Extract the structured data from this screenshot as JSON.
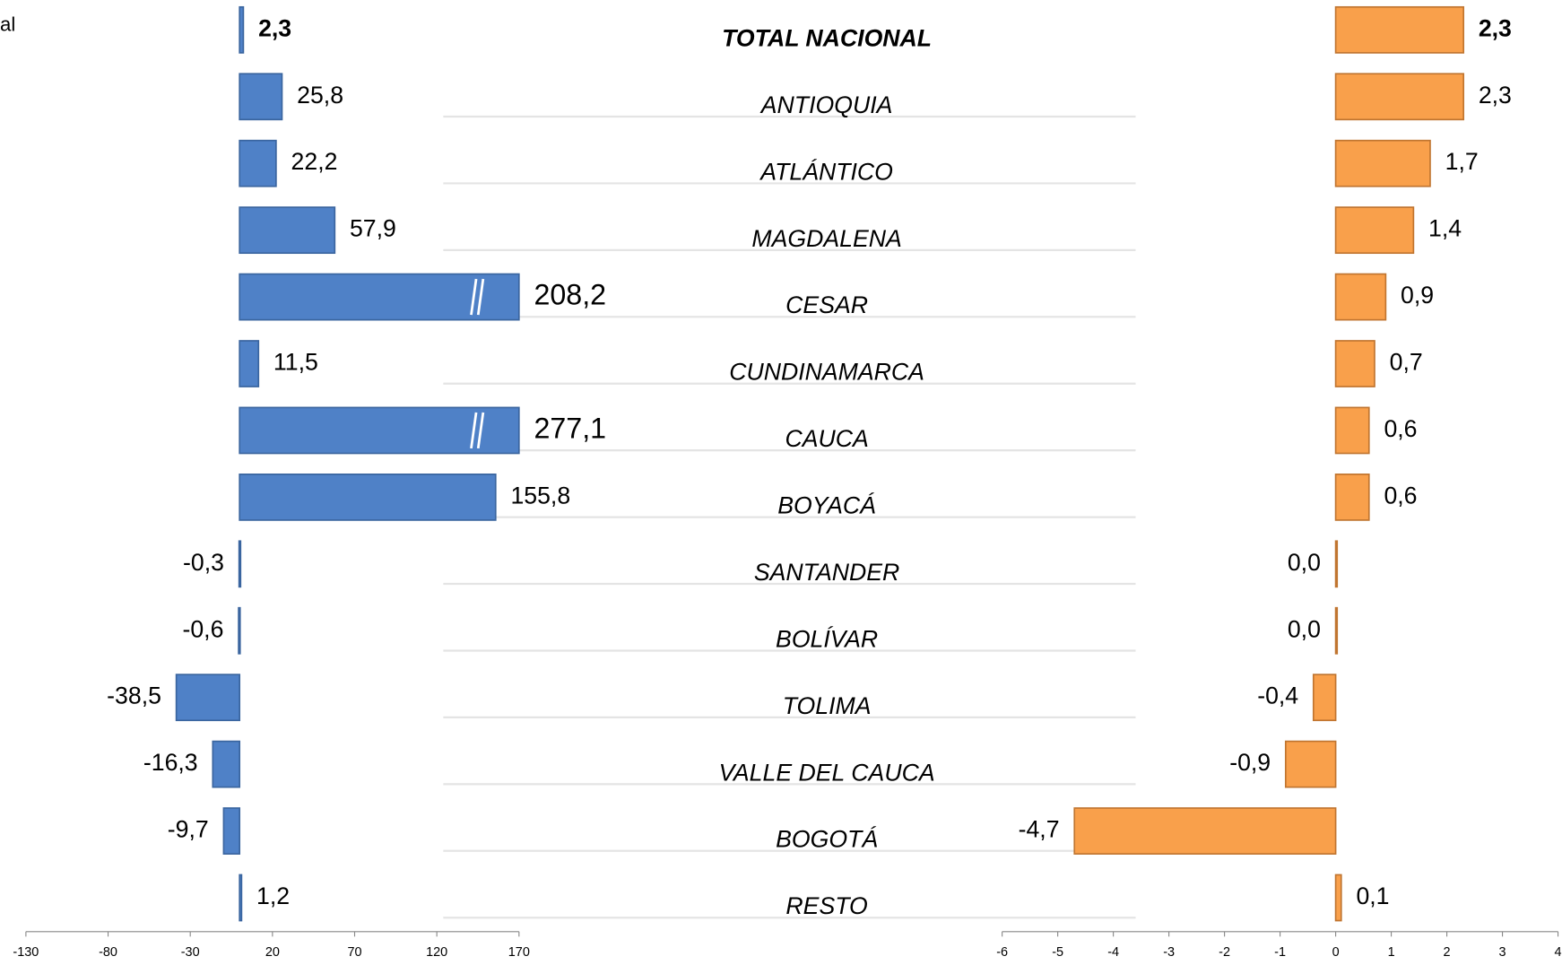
{
  "note": "al",
  "chart_data": [
    {
      "type": "bar",
      "orientation": "horizontal",
      "categories": [
        "TOTAL NACIONAL",
        "ANTIOQUIA",
        "ATLÁNTICO",
        "MAGDALENA",
        "CESAR",
        "CUNDINAMARCA",
        "CAUCA",
        "BOYACÁ",
        "SANTANDER",
        "BOLÍVAR",
        "TOLIMA",
        "VALLE DEL CAUCA",
        "BOGOTÁ",
        "RESTO"
      ],
      "series": [
        {
          "color": "#4f81c7",
          "values": [
            2.3,
            25.8,
            22.2,
            57.9,
            208.2,
            11.5,
            277.1,
            155.8,
            -0.3,
            -0.6,
            -38.5,
            -16.3,
            -9.7,
            1.2
          ],
          "value_labels": [
            "2,3",
            "25,8",
            "22,2",
            "57,9",
            "208,2",
            "11,5",
            "277,1",
            "155,8",
            "-0,3",
            "-0,6",
            "-38,5",
            "-16,3",
            "-9,7",
            "1,2"
          ]
        }
      ],
      "xlim": [
        -130,
        170
      ],
      "xticks": [
        -130,
        -80,
        -30,
        20,
        70,
        120,
        170
      ]
    },
    {
      "type": "bar",
      "orientation": "horizontal",
      "series": [
        {
          "color": "#f9a04b",
          "values": [
            2.3,
            2.3,
            1.7,
            1.4,
            0.9,
            0.7,
            0.6,
            0.6,
            0.0,
            0.0,
            -0.4,
            -0.9,
            -4.7,
            0.1
          ],
          "value_labels": [
            "2,3",
            "2,3",
            "1,7",
            "1,4",
            "0,9",
            "0,7",
            "0,6",
            "0,6",
            "0,0",
            "0,0",
            "-0,4",
            "-0,9",
            "-4,7",
            "0,1"
          ]
        }
      ],
      "xlim": [
        -6,
        4
      ],
      "xticks": [
        -6,
        -5,
        -4,
        -3,
        -2,
        -1,
        0,
        1,
        2,
        3,
        4
      ]
    }
  ]
}
